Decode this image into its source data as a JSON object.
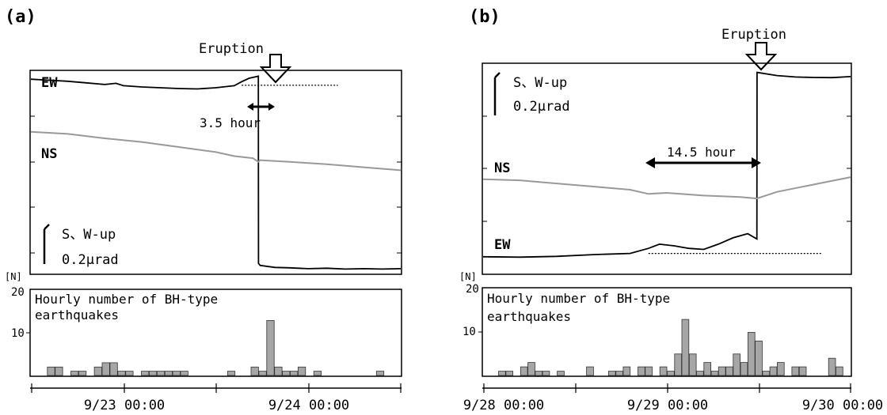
{
  "chart_data": [
    {
      "panel_label": "(a)",
      "tilt": {
        "type": "line",
        "series": [
          {
            "name": "EW",
            "color": "#000000",
            "points": [
              [
                0,
                0.96
              ],
              [
                0.05,
                0.955
              ],
              [
                0.1,
                0.95
              ],
              [
                0.15,
                0.942
              ],
              [
                0.2,
                0.934
              ],
              [
                0.23,
                0.94
              ],
              [
                0.25,
                0.928
              ],
              [
                0.3,
                0.922
              ],
              [
                0.35,
                0.918
              ],
              [
                0.4,
                0.914
              ],
              [
                0.45,
                0.912
              ],
              [
                0.5,
                0.918
              ],
              [
                0.55,
                0.928
              ],
              [
                0.57,
                0.948
              ],
              [
                0.59,
                0.965
              ],
              [
                0.615,
                0.975
              ],
              [
                0.6155,
                0.05
              ],
              [
                0.62,
                0.04
              ],
              [
                0.66,
                0.03
              ],
              [
                0.7,
                0.028
              ],
              [
                0.75,
                0.024
              ],
              [
                0.8,
                0.026
              ],
              [
                0.85,
                0.022
              ],
              [
                0.9,
                0.024
              ],
              [
                0.95,
                0.022
              ],
              [
                1.0,
                0.024
              ]
            ]
          },
          {
            "name": "NS",
            "color": "#999999",
            "points": [
              [
                0,
                0.7
              ],
              [
                0.1,
                0.69
              ],
              [
                0.2,
                0.668
              ],
              [
                0.3,
                0.65
              ],
              [
                0.4,
                0.625
              ],
              [
                0.5,
                0.6
              ],
              [
                0.55,
                0.58
              ],
              [
                0.6,
                0.57
              ],
              [
                0.615,
                0.552
              ],
              [
                0.62,
                0.56
              ],
              [
                0.7,
                0.552
              ],
              [
                0.8,
                0.54
              ],
              [
                0.9,
                0.525
              ],
              [
                1.0,
                0.51
              ]
            ]
          }
        ],
        "baseline_points": [
          [
            0.57,
            0.93
          ],
          [
            0.83,
            0.93
          ]
        ],
        "duration_label": "3.5 hour",
        "scale_label_1": "S、W-up",
        "scale_label_2": "0.2μrad"
      },
      "histogram": {
        "type": "bar",
        "title_line1": "Hourly number of BH-type",
        "title_line2": "earthquakes",
        "unit": "[N]",
        "ylim": [
          0,
          20
        ],
        "yticks": [
          "20",
          "10"
        ],
        "values": [
          0,
          0,
          2,
          2,
          0,
          1,
          1,
          0,
          2,
          3,
          3,
          1,
          1,
          0,
          1,
          1,
          1,
          1,
          1,
          1,
          0,
          0,
          0,
          0,
          0,
          1,
          0,
          0,
          2,
          1,
          13,
          2,
          1,
          1,
          2,
          0,
          1,
          0,
          0,
          0,
          0,
          0,
          0,
          0,
          1,
          0,
          0
        ]
      },
      "x_tick_labels": [
        "9/23 00:00",
        "9/24 00:00"
      ],
      "eruption_label": "Eruption"
    },
    {
      "panel_label": "(b)",
      "tilt": {
        "type": "line",
        "series": [
          {
            "name": "EW",
            "color": "#000000",
            "points": [
              [
                0,
                0.08
              ],
              [
                0.1,
                0.078
              ],
              [
                0.2,
                0.082
              ],
              [
                0.3,
                0.09
              ],
              [
                0.4,
                0.096
              ],
              [
                0.45,
                0.12
              ],
              [
                0.48,
                0.14
              ],
              [
                0.52,
                0.132
              ],
              [
                0.56,
                0.12
              ],
              [
                0.6,
                0.115
              ],
              [
                0.64,
                0.14
              ],
              [
                0.68,
                0.17
              ],
              [
                0.72,
                0.19
              ],
              [
                0.745,
                0.165
              ],
              [
                0.7455,
                0.96
              ],
              [
                0.8,
                0.945
              ],
              [
                0.85,
                0.938
              ],
              [
                0.9,
                0.936
              ],
              [
                0.95,
                0.935
              ],
              [
                1.0,
                0.94
              ]
            ]
          },
          {
            "name": "NS",
            "color": "#999999",
            "points": [
              [
                0,
                0.45
              ],
              [
                0.1,
                0.445
              ],
              [
                0.2,
                0.43
              ],
              [
                0.3,
                0.415
              ],
              [
                0.4,
                0.4
              ],
              [
                0.45,
                0.38
              ],
              [
                0.5,
                0.385
              ],
              [
                0.6,
                0.372
              ],
              [
                0.7,
                0.365
              ],
              [
                0.745,
                0.358
              ],
              [
                0.8,
                0.39
              ],
              [
                0.9,
                0.425
              ],
              [
                1.0,
                0.46
              ]
            ]
          }
        ],
        "baseline_points": [
          [
            0.45,
            0.096
          ],
          [
            0.92,
            0.096
          ]
        ],
        "duration_label": "14.5 hour",
        "scale_label_1": "S、W-up",
        "scale_label_2": "0.2μrad"
      },
      "histogram": {
        "type": "bar",
        "title_line1": "Hourly number of BH-type",
        "title_line2": "earthquakes",
        "unit": "[N]",
        "ylim": [
          0,
          20
        ],
        "yticks": [
          "20",
          "10"
        ],
        "values": [
          0,
          0,
          1,
          1,
          0,
          2,
          3,
          1,
          1,
          0,
          1,
          0,
          0,
          0,
          2,
          0,
          0,
          1,
          1,
          2,
          0,
          2,
          2,
          0,
          2,
          1,
          5,
          13,
          5,
          1,
          3,
          1,
          2,
          2,
          5,
          3,
          10,
          8,
          1,
          2,
          3,
          0,
          2,
          2,
          0,
          0,
          0,
          4,
          2,
          0
        ]
      },
      "x_tick_labels": [
        "9/28 00:00",
        "9/29 00:00",
        "9/30 00:00"
      ],
      "eruption_label": "Eruption"
    }
  ]
}
